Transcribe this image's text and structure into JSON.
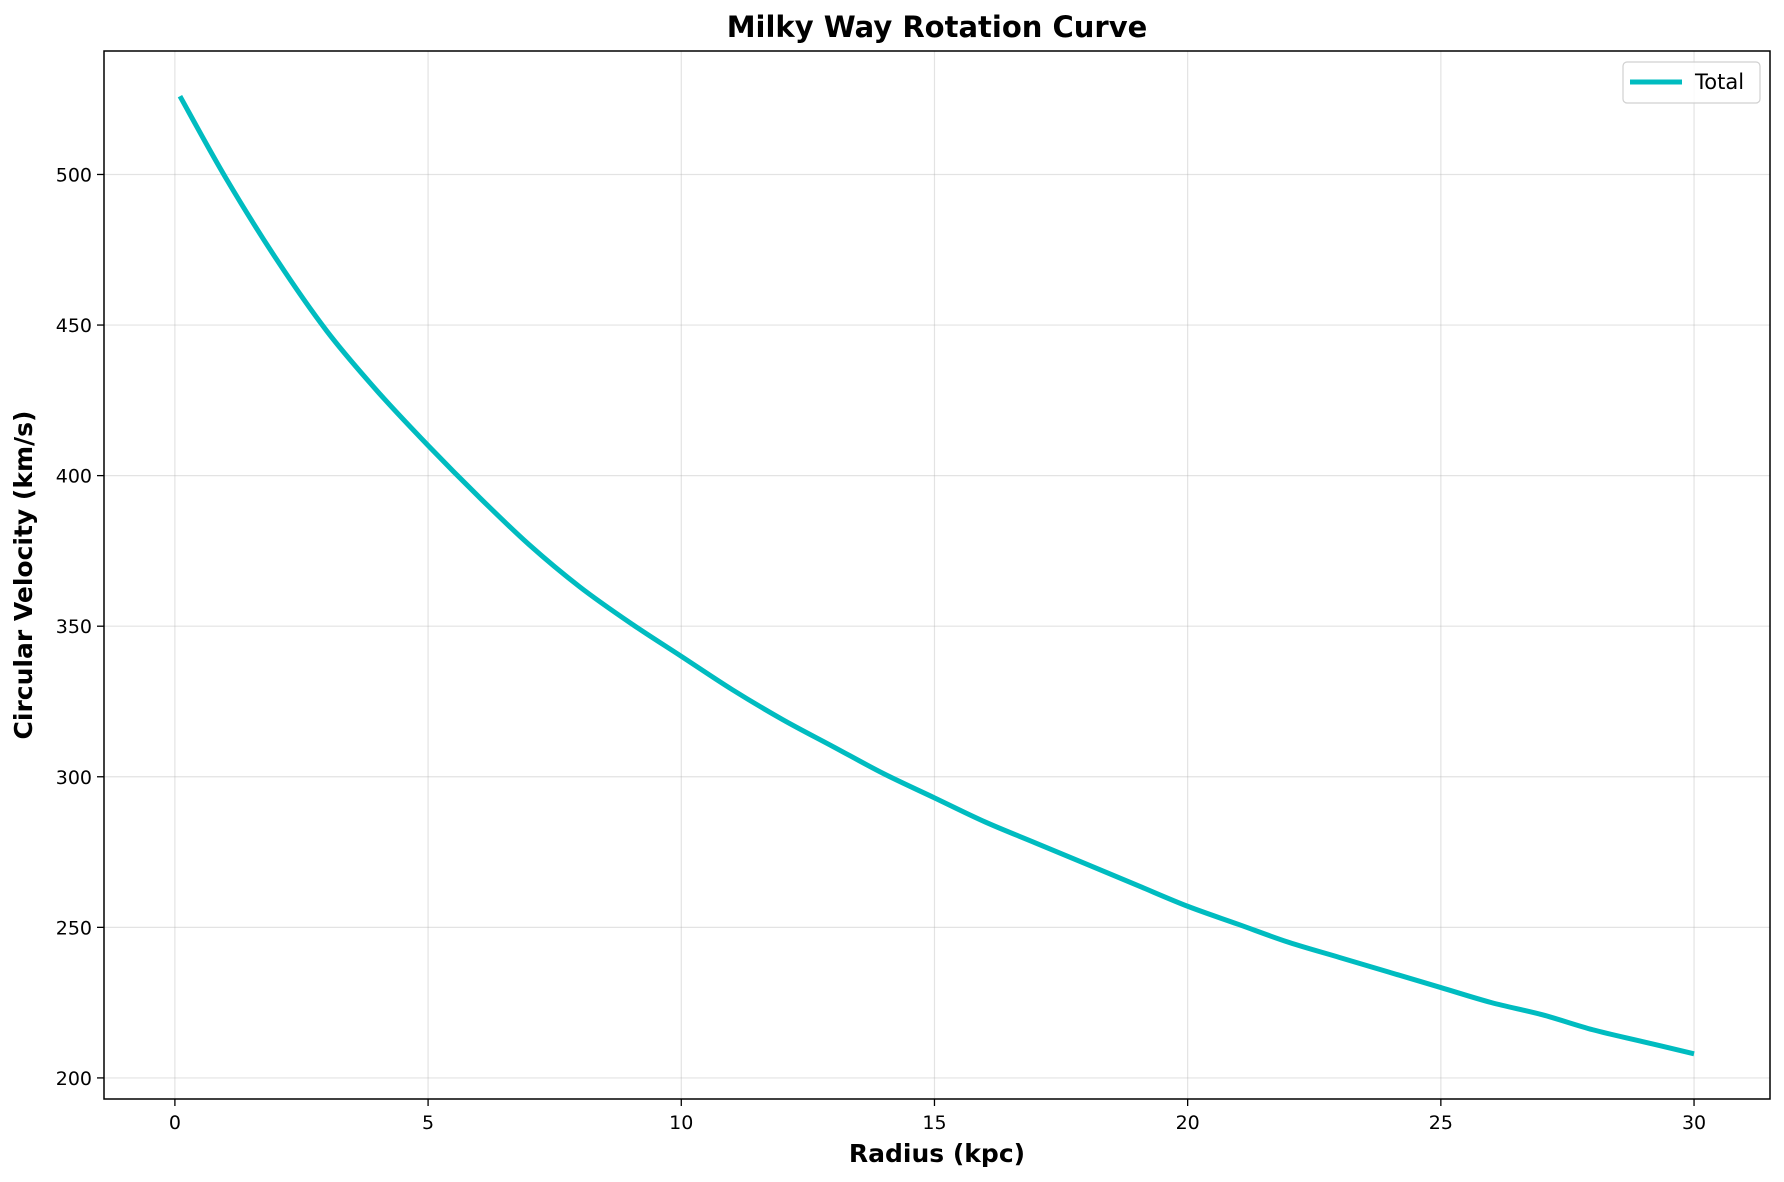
{
  "chart_data": {
    "type": "line",
    "title": "Milky Way Rotation Curve",
    "xlabel": "Radius (kpc)",
    "ylabel": "Circular Velocity (km/s)",
    "xlim": [
      -1.4,
      31.5
    ],
    "ylim": [
      193,
      541
    ],
    "xticks": [
      0,
      5,
      10,
      15,
      20,
      25,
      30
    ],
    "yticks": [
      200,
      250,
      300,
      350,
      400,
      450,
      500
    ],
    "grid": true,
    "legend_position": "upper-right",
    "series": [
      {
        "name": "Total",
        "color": "#00bcc0",
        "x": [
          0.1,
          1,
          2,
          3,
          4,
          5,
          6,
          7,
          8,
          9,
          10,
          11,
          12,
          13,
          14,
          15,
          16,
          17,
          18,
          19,
          20,
          21,
          22,
          23,
          24,
          25,
          26,
          27,
          28,
          29,
          30
        ],
        "y": [
          526,
          499,
          472,
          448,
          428,
          410,
          393,
          377,
          363,
          351,
          340,
          329,
          319,
          310,
          301,
          293,
          285,
          278,
          271,
          264,
          257,
          251,
          245,
          240,
          235,
          230,
          225,
          221,
          216,
          212,
          208
        ]
      }
    ]
  }
}
